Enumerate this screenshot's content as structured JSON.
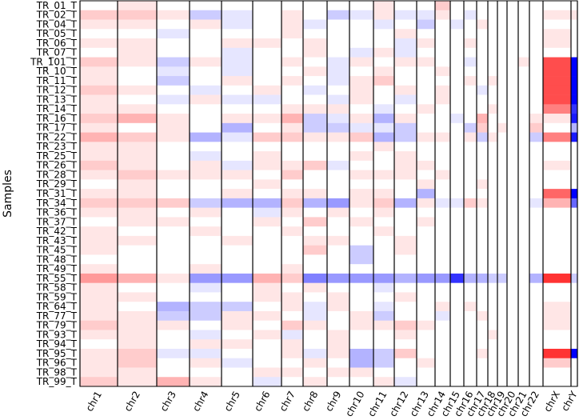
{
  "chart_data": {
    "type": "heatmap",
    "y_label": "Samples",
    "rows": [
      "TR_01_T",
      "TR_02_T",
      "TR_04_T",
      "TR_05_T",
      "TR_06_T",
      "TR_07_T",
      "TR_101_T",
      "TR_10_T",
      "TR_11_T",
      "TR_12_T",
      "TR_13_T",
      "TR_14_T",
      "TR_16_T",
      "TR_17_T",
      "TR_22_T",
      "TR_23_T",
      "TR_25_T",
      "TR_26_T",
      "TR_28_T",
      "TR_29_T",
      "TR_31_T",
      "TR_34_T",
      "TR_36_T",
      "TR_37_T",
      "TR_42_T",
      "TR_43_T",
      "TR_45_T",
      "TR_48_T",
      "TR_49_T",
      "TR_55_T",
      "TR_58_T",
      "TR_59_T",
      "TR_64_T",
      "TR_77_T",
      "TR_79_T",
      "TR_93_T",
      "TR_94_T",
      "TR_95_T",
      "TR_96_T",
      "TR_98_T",
      "TR_99_T"
    ],
    "columns": [
      "chr1",
      "chr2",
      "chr3",
      "chr4",
      "chr5",
      "chr6",
      "chr7",
      "chr8",
      "chr9",
      "chr10",
      "chr11",
      "chr12",
      "chr13",
      "chr14",
      "chr15",
      "chr16",
      "chr17",
      "chr18",
      "chr19",
      "chr20",
      "chr21",
      "chr22",
      "chrX",
      "chrY"
    ],
    "values": [
      [
        0,
        0.1,
        0,
        0,
        0,
        0,
        0,
        0,
        0,
        0,
        0.1,
        0,
        0,
        0.2,
        0,
        0,
        0,
        0,
        0,
        0,
        0,
        0,
        0,
        0
      ],
      [
        0.2,
        0.2,
        0.1,
        -0.2,
        -0.1,
        0,
        0.1,
        0,
        -0.2,
        -0.1,
        0.1,
        -0.1,
        -0.1,
        0.1,
        0,
        -0.1,
        0,
        0,
        0,
        0,
        0,
        0,
        0.1,
        0.1
      ],
      [
        0.1,
        0.1,
        0,
        0.1,
        -0.1,
        0,
        0.1,
        -0.1,
        0,
        0,
        -0.1,
        0,
        -0.2,
        0,
        -0.1,
        0,
        0.1,
        0,
        0,
        0,
        0,
        0,
        0,
        0
      ],
      [
        0,
        0,
        -0.1,
        0,
        0,
        0,
        0.1,
        0,
        0,
        0,
        0,
        0.1,
        0,
        0,
        0,
        0,
        0,
        0,
        0,
        0,
        0,
        0,
        0.1,
        0
      ],
      [
        0.1,
        0.1,
        0,
        0,
        0.1,
        0.1,
        0,
        0.1,
        0,
        0,
        0,
        -0.1,
        0.1,
        0,
        0,
        0.1,
        0,
        0,
        0,
        0,
        0,
        0,
        0.1,
        0
      ],
      [
        0,
        0.1,
        0,
        0,
        -0.1,
        0,
        0,
        0.1,
        0,
        -0.1,
        0.1,
        -0.1,
        0,
        0,
        0,
        0,
        0,
        0,
        0,
        0,
        0,
        0,
        0,
        0
      ],
      [
        0.2,
        0.1,
        -0.2,
        0.1,
        -0.1,
        0,
        0.1,
        0,
        -0.1,
        0.1,
        0,
        0.1,
        0.1,
        0,
        0,
        -0.1,
        0,
        0,
        0,
        0,
        0.1,
        0,
        0.7,
        -1
      ],
      [
        0.1,
        0,
        -0.1,
        0,
        -0.1,
        0,
        0,
        0.1,
        -0.1,
        0,
        0.1,
        0,
        0,
        0.1,
        0,
        0,
        0,
        0,
        0,
        0,
        0,
        0,
        0.7,
        -1
      ],
      [
        0.1,
        0,
        -0.2,
        0,
        0.1,
        0,
        0.1,
        0,
        -0.1,
        0.1,
        0.2,
        0,
        0,
        0,
        0,
        0.1,
        0,
        0.1,
        0,
        0,
        0,
        0,
        0.7,
        -1
      ],
      [
        0.2,
        0.1,
        0,
        -0.1,
        0,
        0.1,
        0,
        -0.1,
        0,
        0.1,
        0,
        0.1,
        0,
        0.1,
        0,
        0,
        -0.1,
        0,
        0,
        0,
        0,
        0,
        0.7,
        -1
      ],
      [
        0.1,
        0,
        -0.1,
        0.1,
        -0.1,
        -0.1,
        0,
        0,
        -0.1,
        0.1,
        0,
        -0.1,
        0,
        0.1,
        0,
        0,
        0,
        0,
        0,
        0,
        0,
        0,
        0.7,
        -1
      ],
      [
        0.1,
        0.1,
        0,
        0,
        0,
        0,
        0.1,
        0.1,
        0.1,
        0,
        -0.1,
        0,
        0.1,
        0,
        0,
        0,
        0,
        0.1,
        0,
        0,
        0,
        0,
        0.5,
        -0.8
      ],
      [
        0.2,
        0.3,
        0.1,
        0,
        0.1,
        0.1,
        0.3,
        -0.2,
        -0.1,
        0.1,
        -0.3,
        0.1,
        0,
        0,
        -0.1,
        0,
        0.3,
        0,
        0,
        0,
        0,
        0.1,
        0.1,
        -0.9
      ],
      [
        0.1,
        0,
        0.1,
        0,
        -0.3,
        0,
        0.1,
        -0.2,
        -0.2,
        -0.1,
        -0.1,
        -0.2,
        0,
        0,
        0,
        -0.2,
        0.2,
        0,
        0.1,
        0,
        0,
        0.2,
        0,
        -0.3
      ],
      [
        0.3,
        0.2,
        0.1,
        -0.3,
        -0.1,
        0.2,
        0.2,
        0.1,
        0.1,
        0.2,
        -0.3,
        -0.2,
        0.1,
        0.1,
        0,
        0.1,
        -0.2,
        0.1,
        0,
        0,
        0,
        -0.2,
        0.5,
        -0.9
      ],
      [
        0.1,
        0.1,
        0,
        0,
        0,
        0,
        0,
        0,
        0,
        0,
        0.1,
        0,
        0,
        0,
        0,
        0,
        0,
        0,
        0,
        0,
        0,
        0,
        0,
        0
      ],
      [
        0.1,
        0.1,
        0,
        -0.1,
        0,
        0.1,
        0,
        0,
        0,
        0.1,
        0,
        0.1,
        0,
        0,
        0,
        0,
        0,
        0,
        0,
        0,
        0,
        0,
        0,
        0
      ],
      [
        0.2,
        0.1,
        0,
        0.1,
        -0.1,
        0.1,
        0.1,
        0.2,
        -0.1,
        0,
        0,
        0.1,
        0.1,
        0,
        0,
        0,
        0,
        0,
        0,
        0,
        0,
        0,
        0.1,
        0
      ],
      [
        0.1,
        0.2,
        0.1,
        0.1,
        0.1,
        0,
        0.2,
        0,
        0,
        0.1,
        0.1,
        0.1,
        0,
        0.1,
        0,
        0,
        0,
        0,
        0,
        0,
        0,
        0,
        0,
        0
      ],
      [
        0,
        0.1,
        0,
        0,
        0,
        0.1,
        0,
        0,
        0,
        0,
        0,
        0,
        0.1,
        0,
        0,
        0,
        0.1,
        0,
        0,
        0,
        0,
        0,
        0,
        0
      ],
      [
        0.1,
        0.1,
        0,
        0,
        0.1,
        0,
        0.1,
        0.1,
        0,
        0.1,
        0.1,
        0,
        -0.3,
        0,
        0,
        0,
        0,
        0,
        0,
        0,
        0,
        0,
        0.6,
        -1
      ],
      [
        0.2,
        0.2,
        0.2,
        -0.2,
        -0.3,
        -0.3,
        0.2,
        -0.3,
        -0.4,
        0.1,
        0.2,
        -0.3,
        0.1,
        -0.1,
        -0.1,
        0.2,
        0.1,
        0,
        0,
        0,
        0,
        -0.1,
        0.3,
        -0.6
      ],
      [
        0.1,
        0.1,
        0,
        0.1,
        0,
        -0.1,
        0.1,
        0,
        0.1,
        0,
        0.1,
        0,
        0,
        0,
        0,
        0,
        0,
        0,
        0,
        0,
        0,
        0,
        0,
        0
      ],
      [
        0,
        0.1,
        0.1,
        0,
        0,
        0.1,
        0,
        0.2,
        0,
        0.1,
        0,
        0,
        0.1,
        0,
        0,
        0,
        0,
        0,
        0,
        0,
        0,
        0,
        0,
        0
      ],
      [
        0.1,
        0,
        0,
        0.1,
        0,
        0,
        0.1,
        0,
        0,
        0,
        0.1,
        0,
        0,
        0,
        0,
        0,
        0,
        0,
        0,
        0,
        0,
        0,
        0,
        0
      ],
      [
        0.1,
        0.1,
        0,
        0,
        0.1,
        0,
        0,
        0.1,
        0.1,
        0,
        0,
        0.1,
        0,
        0,
        0,
        0,
        0,
        0,
        0,
        0,
        0,
        0,
        0,
        0
      ],
      [
        0.1,
        0,
        0,
        0,
        0,
        0,
        0,
        0.2,
        0,
        -0.2,
        0,
        0.1,
        0,
        0,
        0,
        0,
        0,
        0,
        0,
        0,
        0,
        0,
        0,
        0
      ],
      [
        0,
        0,
        0,
        0,
        0,
        0,
        0,
        0,
        0,
        -0.2,
        0,
        0,
        0,
        0,
        0,
        0,
        0,
        0,
        0,
        0,
        0,
        0,
        0,
        0
      ],
      [
        0.1,
        0,
        0,
        0.1,
        0,
        0,
        0.1,
        0,
        0,
        0,
        0,
        0,
        0,
        0,
        0,
        0,
        0,
        0,
        0,
        0,
        0,
        0,
        0,
        0
      ],
      [
        0.4,
        0.3,
        0.1,
        -0.4,
        -0.4,
        0.3,
        0.2,
        -0.5,
        -0.4,
        -0.4,
        -0.4,
        -0.3,
        -0.4,
        -0.4,
        -0.8,
        -0.3,
        -0.3,
        -0.2,
        -0.2,
        0,
        0,
        -0.3,
        0.8,
        -0.2
      ],
      [
        0.1,
        0,
        0,
        -0.1,
        0,
        0.1,
        0,
        0.1,
        0,
        0,
        -0.1,
        0,
        0,
        0,
        0,
        0,
        0,
        0,
        0,
        0,
        0,
        0,
        0,
        0
      ],
      [
        0.1,
        0.1,
        0,
        0,
        0,
        0.1,
        0.1,
        0,
        0.1,
        0,
        0,
        0.1,
        0,
        0,
        0,
        0,
        0,
        0,
        0,
        0,
        0,
        0,
        0,
        0
      ],
      [
        0.1,
        0,
        -0.3,
        -0.2,
        -0.2,
        0,
        0.1,
        -0.1,
        0.1,
        0,
        -0.1,
        0,
        0,
        0.1,
        0,
        0.1,
        0,
        0,
        0,
        0,
        0,
        0,
        0.1,
        0
      ],
      [
        0.1,
        0.1,
        -0.2,
        -0.2,
        0.1,
        0.1,
        0,
        -0.1,
        0,
        0.1,
        -0.2,
        0,
        0,
        -0.1,
        0,
        0,
        0.1,
        0,
        0,
        0,
        0,
        0,
        0.1,
        0
      ],
      [
        0.2,
        0.1,
        0.1,
        0,
        0.1,
        0,
        0.2,
        0.1,
        0,
        0.1,
        0.1,
        0.2,
        0.1,
        0,
        0,
        0,
        0,
        0,
        0,
        0,
        0,
        0,
        0.1,
        0
      ],
      [
        0.1,
        0.1,
        0,
        -0.1,
        0,
        0.1,
        -0.1,
        0,
        0.1,
        0,
        0,
        0.1,
        0,
        0,
        0,
        0,
        0,
        0.1,
        0,
        0,
        0,
        0,
        0,
        0
      ],
      [
        0,
        0.1,
        0,
        0.1,
        0.1,
        0,
        0.1,
        0,
        0.1,
        0,
        0,
        0,
        0,
        0,
        0,
        0,
        0,
        0,
        0,
        0,
        0,
        0,
        0,
        0
      ],
      [
        0.1,
        0.2,
        -0.1,
        -0.1,
        0,
        0,
        0.1,
        -0.1,
        0.1,
        -0.3,
        -0.2,
        0.2,
        0,
        0,
        0,
        0,
        0.1,
        0,
        0,
        0,
        0,
        0,
        0.8,
        -1
      ],
      [
        0.1,
        0.2,
        0,
        0.1,
        -0.1,
        0,
        0,
        0.1,
        0,
        -0.3,
        -0.2,
        0,
        0.1,
        0,
        0,
        0,
        0,
        0,
        0,
        0,
        0,
        0,
        0.2,
        0
      ],
      [
        0.1,
        0.1,
        0,
        0,
        0,
        0.1,
        0.1,
        0,
        0.1,
        0.1,
        0,
        0,
        0,
        0,
        0,
        0,
        0,
        0,
        0,
        0,
        0,
        0,
        0,
        0
      ],
      [
        0.2,
        0.1,
        0.3,
        0.1,
        0,
        -0.1,
        0,
        0.1,
        0,
        0,
        0.1,
        -0.1,
        0,
        0,
        0,
        0,
        0,
        0,
        0,
        0,
        0,
        0,
        0,
        0
      ]
    ]
  }
}
